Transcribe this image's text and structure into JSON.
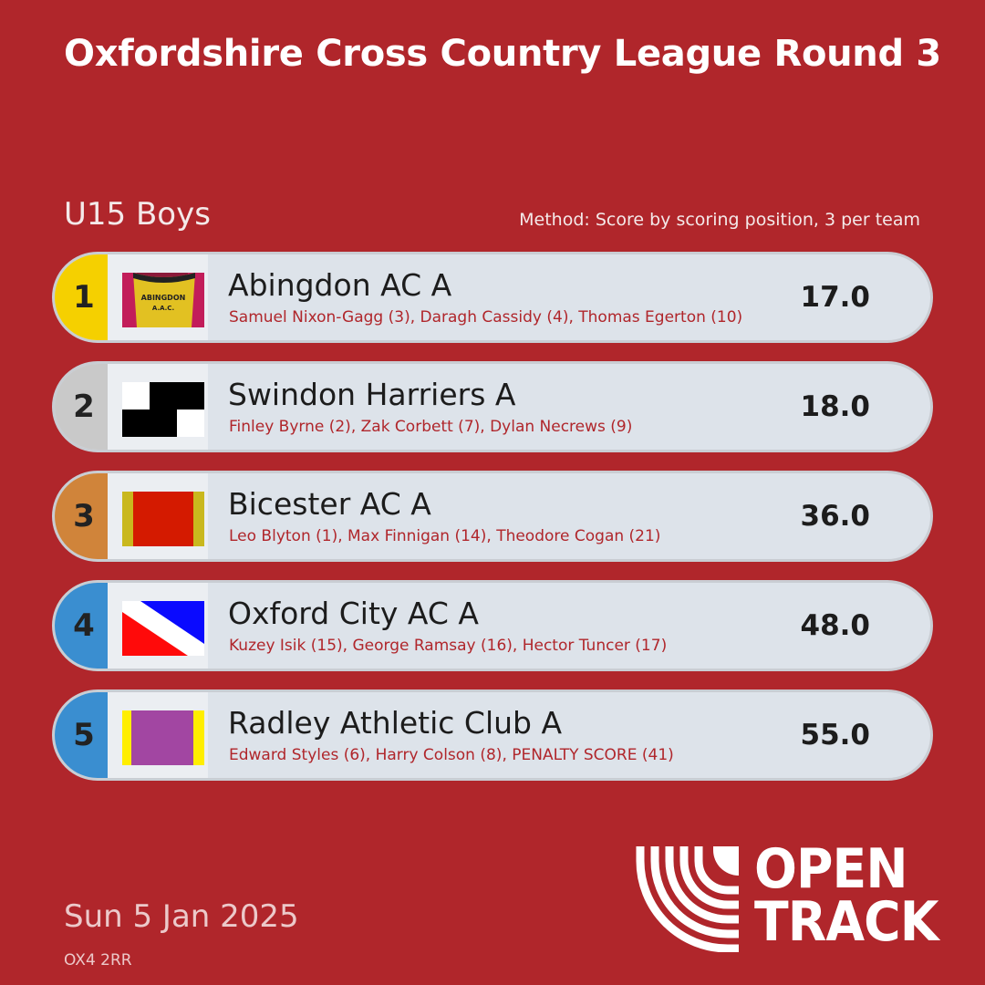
{
  "title": "Oxfordshire Cross Country League Round 3",
  "category": "U15 Boys",
  "method": "Method: Score by scoring position, 3 per team",
  "results": [
    {
      "position": "1",
      "team": "Abingdon AC A",
      "runners": "Samuel Nixon-Gagg (3), Daragh Cassidy (4), Thomas Egerton (10)",
      "score": "17.0",
      "badge_color": "#f5d000",
      "flag": "abingdon-vest",
      "vest_text": "ABINGDON A.A.C."
    },
    {
      "position": "2",
      "team": "Swindon Harriers A",
      "runners": "Finley Byrne (2), Zak Corbett (7), Dylan Necrews (9)",
      "score": "18.0",
      "badge_color": "#c9c9c9",
      "flag": "black-white-check"
    },
    {
      "position": "3",
      "team": "Bicester AC A",
      "runners": "Leo Blyton (1), Max Finnigan (14), Theodore Cogan (21)",
      "score": "36.0",
      "badge_color": "#d0843a",
      "flag": "red-olive-borders"
    },
    {
      "position": "4",
      "team": "Oxford City AC A",
      "runners": "Kuzey Isik (15), George Ramsay (16), Hector Tuncer (17)",
      "score": "48.0",
      "badge_color": "#3a8ed0",
      "flag": "blue-white-red-diagonal"
    },
    {
      "position": "5",
      "team": "Radley Athletic Club A",
      "runners": "Edward Styles (6), Harry Colson (8), PENALTY SCORE (41)",
      "score": "55.0",
      "badge_color": "#3a8ed0",
      "flag": "purple-yellow-borders"
    }
  ],
  "date": "Sun 5 Jan 2025",
  "postcode": "OX4 2RR",
  "logo": {
    "line1": "OPEN",
    "line2": "TRACK"
  },
  "colors": {
    "background": "#b0262b",
    "row": "#dde3ea",
    "runner_text": "#b0262b"
  }
}
